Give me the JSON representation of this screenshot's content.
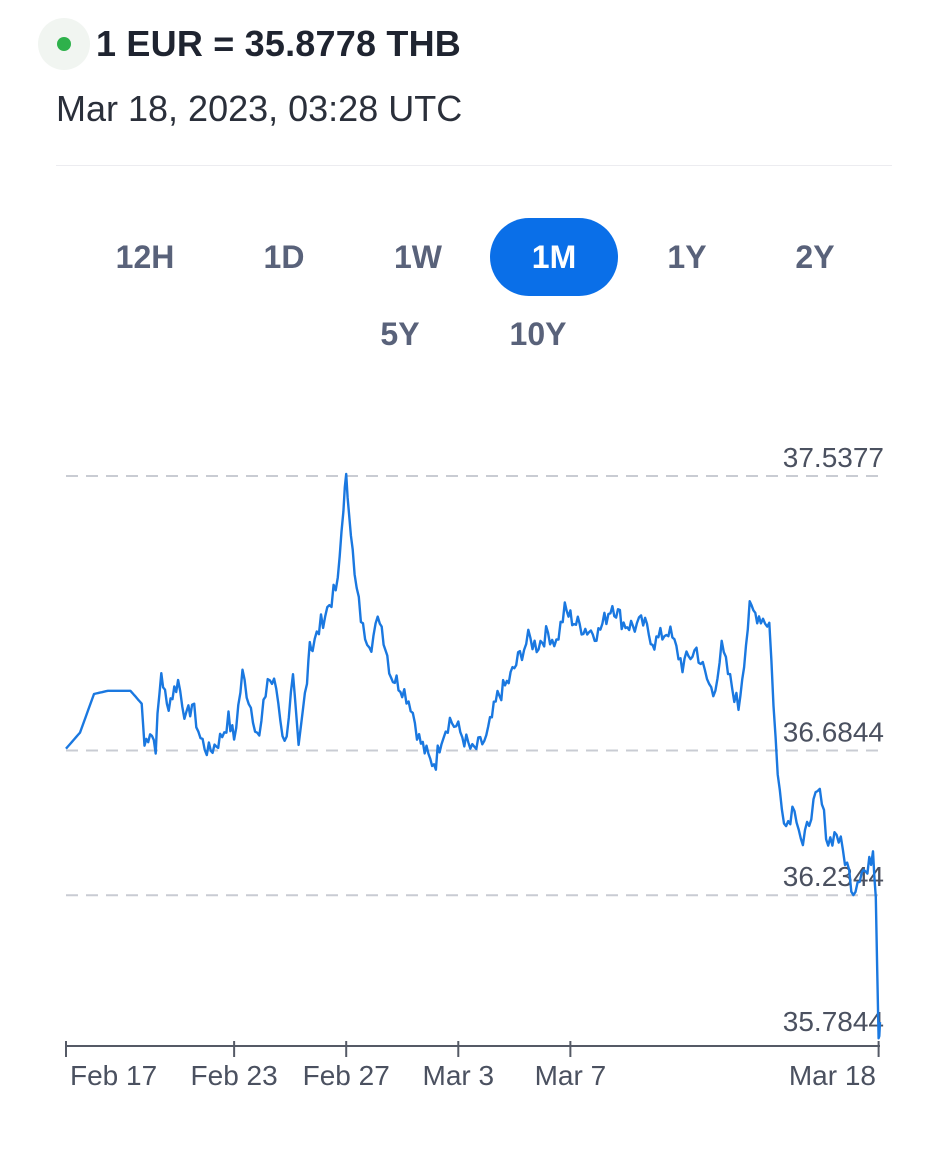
{
  "header": {
    "rate_text": "1 EUR = 35.8778 THB",
    "timestamp": "Mar 18, 2023, 03:28 UTC",
    "live_dot_color": "#2eb14b"
  },
  "range_tabs": [
    {
      "label": "12H",
      "active": false
    },
    {
      "label": "1D",
      "active": false
    },
    {
      "label": "1W",
      "active": false
    },
    {
      "label": "1M",
      "active": true
    },
    {
      "label": "1Y",
      "active": false
    },
    {
      "label": "2Y",
      "active": false
    },
    {
      "label": "5Y",
      "active": false
    },
    {
      "label": "10Y",
      "active": false
    }
  ],
  "chart_data": {
    "type": "line",
    "title": "",
    "xlabel": "",
    "ylabel": "",
    "line_color": "#1a78e0",
    "grid": "dashed horizontal lines at labeled levels",
    "y_ticks": [
      "37.5377",
      "36.6844",
      "36.2344",
      "35.7844"
    ],
    "y_tick_values": [
      37.5377,
      36.6844,
      36.2344,
      35.7844
    ],
    "x_ticks": [
      "Feb 17",
      "Feb 23",
      "Feb 27",
      "Mar 3",
      "Mar 7",
      "Mar 18"
    ],
    "x_tick_days": [
      0,
      6,
      10,
      14,
      18,
      29
    ],
    "series": [
      {
        "x": [
          0,
          0.5,
          1,
          1.5,
          2.3,
          2.7,
          2.8,
          3,
          3.2,
          3.4,
          3.6,
          4,
          4.3,
          4.5,
          4.8,
          5.1,
          5.5,
          5.8,
          6,
          6.3,
          6.6,
          6.9,
          7.2,
          7.5,
          7.8,
          8.1,
          8.3,
          8.6,
          8.7,
          8.8,
          9.1,
          9.4,
          9.7,
          9.9,
          10.0,
          10.1,
          10.3,
          10.6,
          10.9,
          11.2,
          11.6,
          12,
          12.3,
          12.6,
          13,
          13.2,
          13.4,
          13.7,
          14,
          14.5,
          15,
          15.4,
          15.8,
          16.2,
          16.5,
          16.8,
          17.2,
          17.5,
          17.8,
          18.2,
          18.6,
          19,
          19.5,
          19.9,
          20.3,
          20.6,
          21,
          21.5,
          22,
          22.5,
          22.8,
          23.1,
          23.4,
          23.7,
          24,
          24.4,
          24.8,
          25.1,
          25.4,
          25.7,
          26,
          26.3,
          26.6,
          26.9,
          27.2,
          27.5,
          27.8,
          28.1,
          28.4,
          28.6,
          28.8,
          28.9,
          29.0,
          29.05
        ],
        "y": [
          36.69,
          36.74,
          36.86,
          36.87,
          36.87,
          36.83,
          36.7,
          36.75,
          36.7,
          36.93,
          36.82,
          36.9,
          36.78,
          36.83,
          36.72,
          36.68,
          36.72,
          36.78,
          36.72,
          36.92,
          36.82,
          36.72,
          36.91,
          36.88,
          36.7,
          36.9,
          36.68,
          36.92,
          37.03,
          37.0,
          37.08,
          37.14,
          37.2,
          37.45,
          37.52,
          37.45,
          37.22,
          37.06,
          37.02,
          37.1,
          36.92,
          36.88,
          36.83,
          36.72,
          36.65,
          36.65,
          36.73,
          36.78,
          36.75,
          36.68,
          36.72,
          36.85,
          36.9,
          36.98,
          37.03,
          37.01,
          37.05,
          37.02,
          37.12,
          37.08,
          37.06,
          37.05,
          37.14,
          37.08,
          37.07,
          37.08,
          37.02,
          37.06,
          36.95,
          37.0,
          36.92,
          36.86,
          37.0,
          36.9,
          36.82,
          37.12,
          37.1,
          37.08,
          36.6,
          36.45,
          36.52,
          36.38,
          36.5,
          36.55,
          36.4,
          36.43,
          36.35,
          36.25,
          36.32,
          36.3,
          36.38,
          36.25,
          35.8,
          35.84
        ]
      }
    ],
    "legend": "none"
  }
}
